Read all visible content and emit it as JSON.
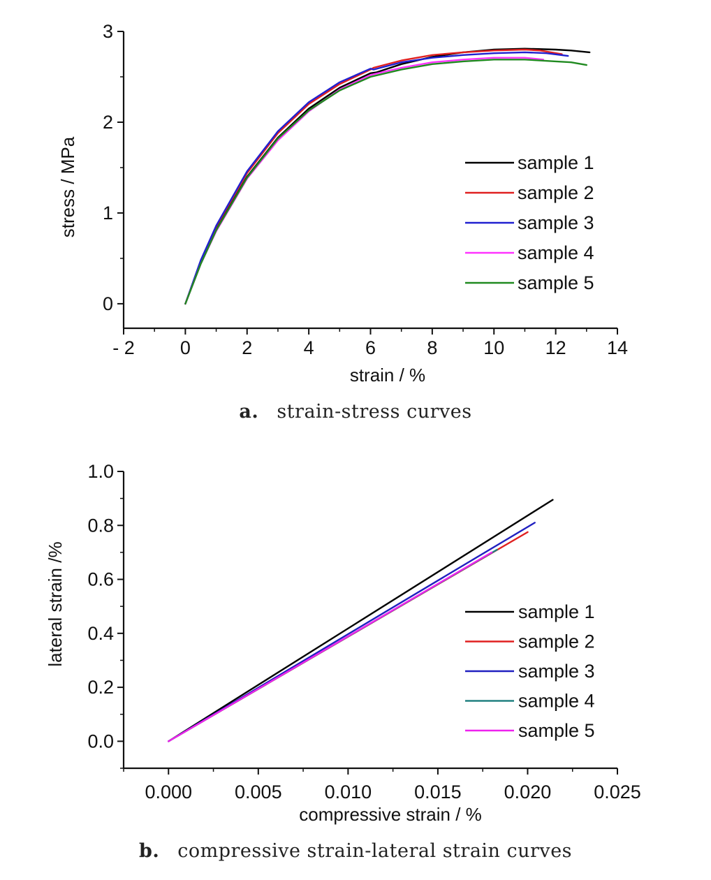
{
  "captions": [
    {
      "letter": "a.",
      "text": "strain-stress curves"
    },
    {
      "letter": "b.",
      "text": "compressive strain-lateral strain curves"
    }
  ],
  "chart_data": [
    {
      "type": "line",
      "xlabel": "strain / %",
      "ylabel": "stress / MPa",
      "xlim": [
        -2,
        14
      ],
      "ylim": [
        -0.27,
        3
      ],
      "xticks": [
        -2,
        0,
        2,
        4,
        6,
        8,
        10,
        12,
        14
      ],
      "yticks": [
        0,
        1,
        2,
        3
      ],
      "x_tick_labels": [
        "- 2",
        "0",
        "2",
        "4",
        "6",
        "8",
        "10",
        "12",
        "14"
      ],
      "y_tick_labels": [
        "0",
        "1",
        "2",
        "3"
      ],
      "legend_position": "center-right",
      "series": [
        {
          "name": "sample 1",
          "color": "#000000",
          "x": [
            0,
            0.5,
            1,
            2,
            3,
            4,
            5,
            6,
            6.2,
            7,
            8,
            9,
            10,
            11,
            12,
            12.5,
            13.1
          ],
          "y": [
            0,
            0.45,
            0.82,
            1.4,
            1.83,
            2.15,
            2.38,
            2.54,
            2.55,
            2.64,
            2.72,
            2.77,
            2.8,
            2.81,
            2.8,
            2.79,
            2.77
          ]
        },
        {
          "name": "sample 2",
          "color": "#e02020",
          "x": [
            0,
            0.5,
            1,
            2,
            3,
            4,
            5,
            6,
            6.1,
            7,
            8,
            9,
            10,
            11,
            11.5,
            12.2
          ],
          "y": [
            0,
            0.47,
            0.85,
            1.44,
            1.88,
            2.2,
            2.42,
            2.58,
            2.6,
            2.68,
            2.74,
            2.77,
            2.79,
            2.8,
            2.79,
            2.75
          ]
        },
        {
          "name": "sample 3",
          "color": "#2020d0",
          "x": [
            0,
            0.5,
            1,
            2,
            3,
            4,
            5,
            6,
            6.1,
            7,
            8,
            9,
            10,
            11,
            11.7,
            12.4
          ],
          "y": [
            0,
            0.48,
            0.86,
            1.46,
            1.9,
            2.22,
            2.44,
            2.59,
            2.58,
            2.66,
            2.71,
            2.74,
            2.76,
            2.77,
            2.76,
            2.73
          ]
        },
        {
          "name": "sample 4",
          "color": "#ff33ff",
          "x": [
            0,
            0.5,
            1,
            2,
            3,
            4,
            5,
            6,
            7,
            8,
            9,
            10,
            11,
            11.6
          ],
          "y": [
            0,
            0.44,
            0.8,
            1.38,
            1.8,
            2.12,
            2.36,
            2.52,
            2.6,
            2.66,
            2.69,
            2.71,
            2.71,
            2.69
          ]
        },
        {
          "name": "sample 5",
          "color": "#208a20",
          "x": [
            0,
            0.5,
            1,
            2,
            3,
            4,
            5,
            6,
            7,
            8,
            9,
            10,
            11,
            12,
            12.5,
            13.0
          ],
          "y": [
            0,
            0.44,
            0.81,
            1.39,
            1.82,
            2.13,
            2.35,
            2.5,
            2.58,
            2.64,
            2.67,
            2.69,
            2.69,
            2.67,
            2.66,
            2.63
          ]
        }
      ]
    },
    {
      "type": "line",
      "xlabel": "compressive strain / %",
      "ylabel": "lateral strain /%",
      "xlim": [
        -0.0025,
        0.025
      ],
      "ylim": [
        -0.1,
        1.0
      ],
      "xticks": [
        0.0,
        0.005,
        0.01,
        0.015,
        0.02,
        0.025
      ],
      "yticks": [
        0.0,
        0.2,
        0.4,
        0.6,
        0.8,
        1.0
      ],
      "x_tick_labels": [
        "0.000",
        "0.005",
        "0.010",
        "0.015",
        "0.020",
        "0.025"
      ],
      "y_tick_labels": [
        "0.0",
        "0.2",
        "0.4",
        "0.6",
        "0.8",
        "1.0"
      ],
      "legend_position": "center-right",
      "series": [
        {
          "name": "sample 1",
          "color": "#000000",
          "x": [
            0,
            0.0214
          ],
          "y": [
            0,
            0.895
          ]
        },
        {
          "name": "sample 2",
          "color": "#e02020",
          "x": [
            0,
            0.02
          ],
          "y": [
            0,
            0.775
          ]
        },
        {
          "name": "sample 3",
          "color": "#2020c0",
          "x": [
            0,
            0.0204
          ],
          "y": [
            0,
            0.81
          ]
        },
        {
          "name": "sample 4",
          "color": "#208080",
          "x": [
            0,
            0.0183
          ],
          "y": [
            0,
            0.71
          ]
        },
        {
          "name": "sample 5",
          "color": "#ee22ee",
          "x": [
            0,
            0.018
          ],
          "y": [
            0,
            0.7
          ]
        }
      ]
    }
  ]
}
